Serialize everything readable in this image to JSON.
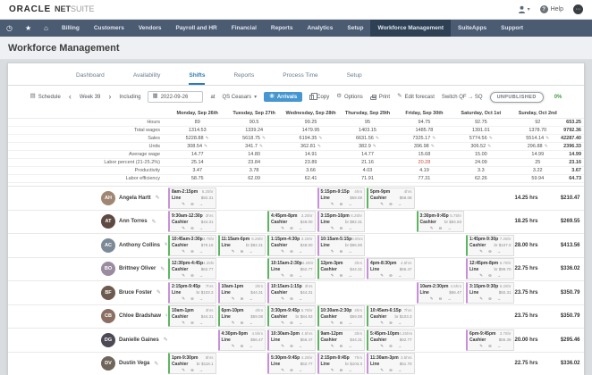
{
  "header": {
    "logo_primary": "ORACLE",
    "logo_secondary_bold": "NET",
    "logo_secondary_light": "SUITE",
    "help_label": "Help"
  },
  "navbar": {
    "items": [
      "Billing",
      "Customers",
      "Vendors",
      "Payroll and HR",
      "Financial",
      "Reports",
      "Analytics",
      "Setup",
      "Workforce Management",
      "SuiteApps",
      "Support"
    ],
    "active_item": "Workforce Management"
  },
  "page_title": "Workforce Management",
  "tabs": [
    {
      "label": "Dashboard"
    },
    {
      "label": "Availability"
    },
    {
      "label": "Shifts"
    },
    {
      "label": "Reports"
    },
    {
      "label": "Process Time"
    },
    {
      "label": "Setup"
    }
  ],
  "active_tab": "Shifts",
  "toolbar": {
    "schedule_label": "Schedule",
    "prev_label": "‹",
    "week_label": "Week 39",
    "next_label": "›",
    "including_label": "Including",
    "date_value": "2022-09-26",
    "at_label": "at",
    "location_label": "QS Ceasars",
    "arrivals_button": "Arrivals",
    "copy_button": "Copy",
    "options_button": "Options",
    "print_button": "Print",
    "edit_forecast_button": "Edit forecast",
    "switch_label": "Switch QF → SQ",
    "status_badge": "UNPUBLISHED",
    "percent_label": "0%"
  },
  "icons": {
    "edit": "✎",
    "remove": "⊖",
    "move": "→",
    "calendar": "▦",
    "caret": "▾",
    "clock": "◷",
    "star": "★",
    "home": "⌂",
    "gear": "⚙",
    "schedule": "▤",
    "dots": "⋯",
    "question": "?",
    "arrivals": "◉"
  },
  "colors": {
    "green_shift": "#5cb660",
    "purple_shift": "#c98fd9",
    "accent_blue": "#2e7bb4",
    "flag_red": "#c4473a",
    "publish_green": "#43a047",
    "navbar": "#4a5b72"
  },
  "stats": {
    "day_headers": [
      "Monday, Sep 26th",
      "Tuesday, Sep 27th",
      "Wednesday, Sep 28th",
      "Thursday, Sep 29th",
      "Friday, Sep 30th",
      "Saturday, Oct 1st",
      "Sunday, Oct 2nd"
    ],
    "rows": [
      {
        "label": "Hours",
        "values": [
          "89",
          "90.5",
          "99.25",
          "95",
          "94.75",
          "92.75",
          "92"
        ],
        "total": "653.25",
        "editable": false
      },
      {
        "label": "Total wages",
        "values": [
          "1314.53",
          "1339.24",
          "1479.95",
          "1403.15",
          "1485.78",
          "1391.01",
          "1378.70"
        ],
        "total": "9792.36",
        "editable": false
      },
      {
        "label": "Sales",
        "values": [
          "5228.88",
          "5618.75",
          "6194.35",
          "6631.56",
          "7325.17",
          "5774.56",
          "5514.14"
        ],
        "total": "42287.40",
        "editable": true
      },
      {
        "label": "Units",
        "values": [
          "308.54",
          "341.7",
          "362.81",
          "382.9",
          "396.98",
          "306.52",
          "296.88"
        ],
        "total": "2396.33",
        "editable": true
      },
      {
        "label": "Average wage",
        "values": [
          "14.77",
          "14.80",
          "14.91",
          "14.77",
          "15.68",
          "15.00",
          "14.99"
        ],
        "total": "14.99",
        "editable": false
      },
      {
        "label": "Labor percent (21-25.2%)",
        "values": [
          "25.14",
          "23.84",
          "23.89",
          "21.16",
          "20.28",
          "24.09",
          "25"
        ],
        "total": "23.16",
        "editable": false,
        "flag_index": 4
      },
      {
        "label": "Productivity",
        "values": [
          "3.47",
          "3.78",
          "3.66",
          "4.03",
          "4.19",
          "3.3",
          "3.22"
        ],
        "total": "3.67",
        "editable": false
      },
      {
        "label": "Labor efficiency",
        "values": [
          "58.75",
          "62.09",
          "62.41",
          "71.91",
          "77.31",
          "62.26",
          "59.94"
        ],
        "total": "64.73",
        "editable": false
      }
    ]
  },
  "schedule": {
    "employees": [
      {
        "name": "Angela Hartt",
        "initials": "AH",
        "avatar_color": "#a08774",
        "hours": "14.25 hrs",
        "wage": "$210.47",
        "shifts": [
          {
            "time": "8am-2:15pm",
            "duration": "6.25hr",
            "role": "Line",
            "wage": "$92.31",
            "color": "purple"
          },
          null,
          null,
          {
            "time": "5:15pm-9:15p",
            "duration": "4hrs",
            "role": "Line",
            "wage": "$59.08",
            "color": "purple"
          },
          {
            "time": "5pm-9pm",
            "duration": "4hrs",
            "role": "Cashier",
            "wage": "$59.08",
            "color": "green"
          },
          null,
          null
        ]
      },
      {
        "name": "Ann Torres",
        "initials": "AT",
        "avatar_color": "#5f4a42",
        "hours": "18.25 hrs",
        "wage": "$269.55",
        "shifts": [
          {
            "time": "9:30am-12:30p",
            "duration": "3hrs",
            "role": "Cashier",
            "wage": "$44.31",
            "color": "purple"
          },
          null,
          {
            "time": "4:45pm-8pm",
            "duration": "3.25hr",
            "role": "Cashier",
            "wage": "$48.00",
            "color": "green"
          },
          {
            "time": "3:15pm-10pm",
            "duration": "6.25hr",
            "role": "Line",
            "wage": "br $92.31",
            "color": "purple"
          },
          null,
          {
            "time": "3:30pm-9:45p",
            "duration": "5.75hr",
            "role": "Cashier",
            "wage": "br $84.93",
            "color": "green"
          },
          null
        ]
      },
      {
        "name": "Anthony Collins",
        "initials": "AC",
        "avatar_color": "#7b8a96",
        "hours": "28.00 hrs",
        "wage": "$413.56",
        "shifts": [
          {
            "time": "10:45am-3:30p",
            "duration": "4.75hr",
            "role": "Cashier",
            "wage": "$70.16",
            "color": "green"
          },
          {
            "time": "11:15am-6pm",
            "duration": "6.25hr",
            "role": "Line",
            "wage": "br $92.31",
            "color": "green"
          },
          {
            "time": "1:15pm-4:30p",
            "duration": "3.25hr",
            "role": "Cashier",
            "wage": "$48.00",
            "color": "green"
          },
          {
            "time": "10:15am-5:15p",
            "duration": "6.5hrs",
            "role": "Line",
            "wage": "br $96.00",
            "color": "purple"
          },
          null,
          null,
          {
            "time": "1:45pm-9:30p",
            "duration": "7.25hr",
            "role": "Cashier",
            "wage": "br $107.0",
            "color": "green"
          }
        ]
      },
      {
        "name": "Brittney Oliver",
        "initials": "BO",
        "avatar_color": "#9b8ba0",
        "hours": "22.75 hrs",
        "wage": "$336.02",
        "shifts": [
          {
            "time": "12:30pm-4:45p",
            "duration": "4.25hr",
            "role": "Cashier",
            "wage": "$62.77",
            "color": "green"
          },
          null,
          {
            "time": "10:15am-2:30p",
            "duration": "4.25hr",
            "role": "Line",
            "wage": "$62.77",
            "color": "green"
          },
          {
            "time": "12pm-3pm",
            "duration": "3hrs",
            "role": "Cashier",
            "wage": "$44.31",
            "color": "green"
          },
          {
            "time": "4pm-8:30pm",
            "duration": "4.5hrs",
            "role": "Line",
            "wage": "$66.47",
            "color": "purple"
          },
          null,
          {
            "time": "12:45pm-8pm",
            "duration": "6.75hr",
            "role": "Line",
            "wage": "br $99.70",
            "color": "purple"
          }
        ]
      },
      {
        "name": "Bruce Foster",
        "initials": "BF",
        "avatar_color": "#6e5a4e",
        "hours": "23.75 hrs",
        "wage": "$350.79",
        "shifts": [
          {
            "time": "2:15pm-9:45p",
            "duration": "7hrs",
            "role": "Line",
            "wage": "br $103.3",
            "color": "purple"
          },
          {
            "time": "10am-1pm",
            "duration": "3hrs",
            "role": "Line",
            "wage": "$44.31",
            "color": "purple"
          },
          {
            "time": "10:15am-1:15p",
            "duration": "3hrs",
            "role": "Cashier",
            "wage": "$44.31",
            "color": "purple"
          },
          null,
          null,
          {
            "time": "10am-2:30pm",
            "duration": "4.5hrs",
            "role": "Line",
            "wage": "$66.47",
            "color": "purple"
          },
          {
            "time": "3:15pm-9:30p",
            "duration": "6.25hr",
            "role": "Line",
            "wage": "$92.31",
            "color": "purple"
          }
        ]
      },
      {
        "name": "Chloe Bradshaw",
        "initials": "CB",
        "avatar_color": "#8a6f62",
        "hours": "23.75 hrs",
        "wage": "$350.79",
        "shifts": [
          {
            "time": "10am-1pm",
            "duration": "3hrs",
            "role": "Cashier",
            "wage": "$44.31",
            "color": "green"
          },
          {
            "time": "6pm-10pm",
            "duration": "4hrs",
            "role": "Line",
            "wage": "$59.08",
            "color": "green"
          },
          {
            "time": "3:30pm-9:45p",
            "duration": "5.75hr",
            "role": "Cashier",
            "wage": "br $84.93",
            "color": "green"
          },
          {
            "time": "10:30am-2:30p",
            "duration": "4hrs",
            "role": "Cashier",
            "wage": "$59.08",
            "color": "green"
          },
          {
            "time": "10:45am-6:15p",
            "duration": "7hrs",
            "role": "Cashier",
            "wage": "br $103.3",
            "color": "green"
          },
          null,
          null
        ]
      },
      {
        "name": "Danielle Gaines",
        "initials": "DG",
        "avatar_color": "#4e4a55",
        "hours": "20.00 hrs",
        "wage": "$295.46",
        "shifts": [
          null,
          {
            "time": "4:30pm-9pm",
            "duration": "4.5hrs",
            "role": "Line",
            "wage": "$66.47",
            "color": "purple"
          },
          {
            "time": "10:30am-3pm",
            "duration": "4.5hrs",
            "role": "Line",
            "wage": "$66.47",
            "color": "purple"
          },
          {
            "time": "9am-12pm",
            "duration": "3hrs",
            "role": "Cashier",
            "wage": "$44.31",
            "color": "green"
          },
          {
            "time": "5:45pm-10pm",
            "duration": "4.25hrs",
            "role": "Cashier",
            "wage": "$62.77",
            "color": "green"
          },
          null,
          {
            "time": "6pm-9:45pm",
            "duration": "3.75hr",
            "role": "Cashier",
            "wage": "$55.39",
            "color": "purple"
          }
        ]
      },
      {
        "name": "Dustin Vega",
        "initials": "DV",
        "avatar_color": "#70655a",
        "hours": "22.75 hrs",
        "wage": "$336.02",
        "shifts": [
          {
            "time": "1pm-9:30pm",
            "duration": "8hrs",
            "role": "Cashier",
            "wage": "br $118.1",
            "color": "green"
          },
          null,
          {
            "time": "5:30pm-9:45p",
            "duration": "4.25hr",
            "role": "Line",
            "wage": "$62.77",
            "color": "purple"
          },
          {
            "time": "2:15pm-9:45p",
            "duration": "7hrs",
            "role": "Line",
            "wage": "br $103.3",
            "color": "purple"
          },
          {
            "time": "11:30am-3pm",
            "duration": "3.5hrs",
            "role": "Line",
            "wage": "$51.70",
            "color": "purple"
          },
          null,
          null
        ]
      }
    ]
  }
}
